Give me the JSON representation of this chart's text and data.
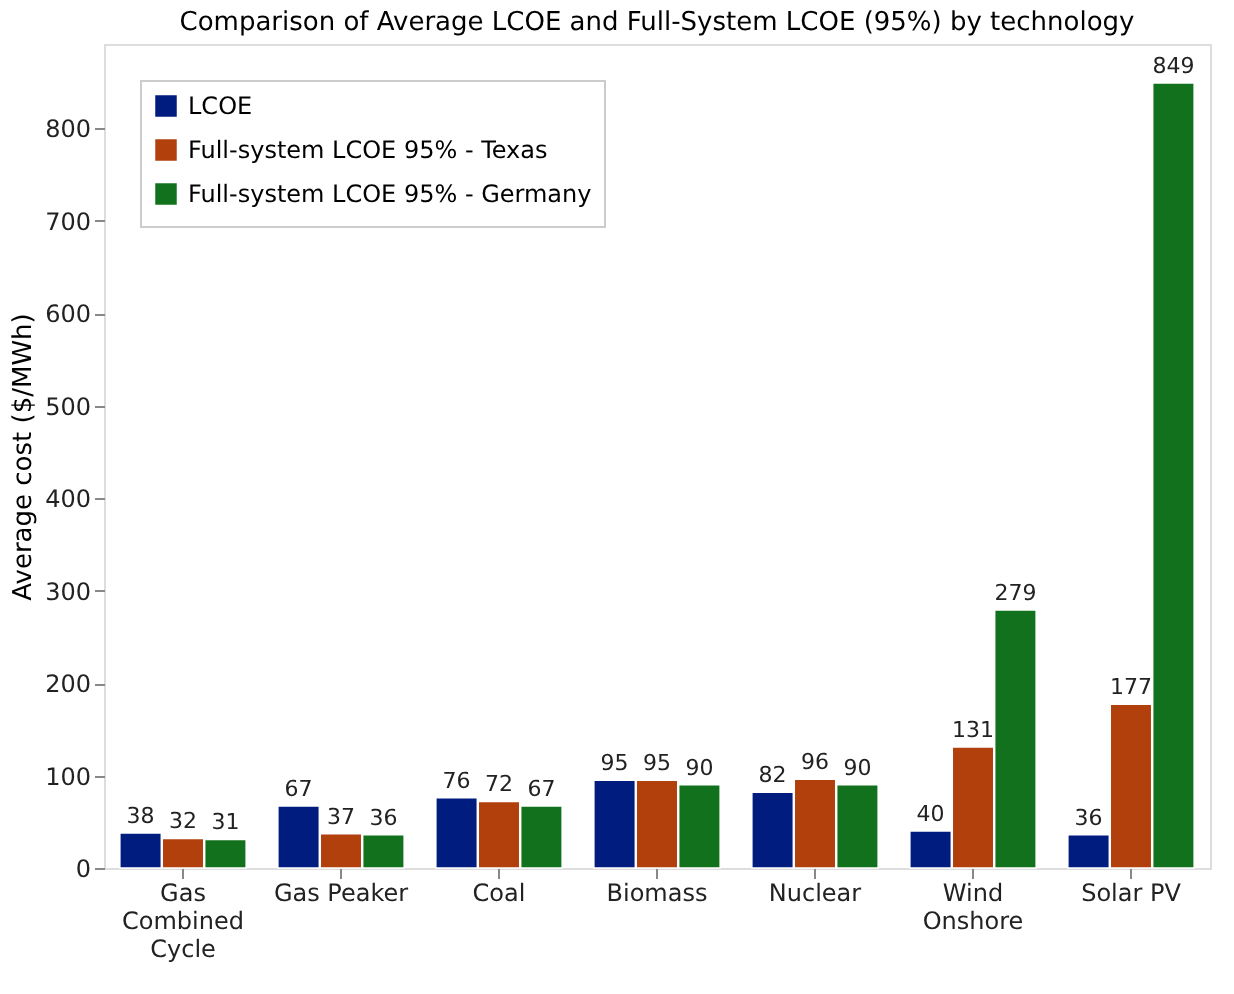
{
  "chart_data": {
    "type": "bar",
    "title": "Comparison of Average LCOE and Full-System LCOE (95%) by technology",
    "ylabel": "Average cost ($/MWh)",
    "categories": [
      "Gas Combined Cycle",
      "Gas Peaker",
      "Coal",
      "Biomass",
      "Nuclear",
      "Wind Onshore",
      "Solar PV"
    ],
    "series": [
      {
        "name": "LCOE",
        "color": "#001c7f",
        "values": [
          38,
          67,
          76,
          95,
          82,
          40,
          36
        ]
      },
      {
        "name": "Full-system LCOE 95% - Texas",
        "color": "#b1400d",
        "values": [
          32,
          37,
          72,
          95,
          96,
          131,
          177
        ]
      },
      {
        "name": "Full-system LCOE 95% - Germany",
        "color": "#12711c",
        "values": [
          31,
          36,
          67,
          90,
          90,
          279,
          849
        ]
      }
    ],
    "ylim": [
      0,
      891
    ],
    "yticks": [
      0,
      100,
      200,
      300,
      400,
      500,
      600,
      700,
      800
    ],
    "data_labels": true,
    "legend": "top left",
    "grid": false
  }
}
